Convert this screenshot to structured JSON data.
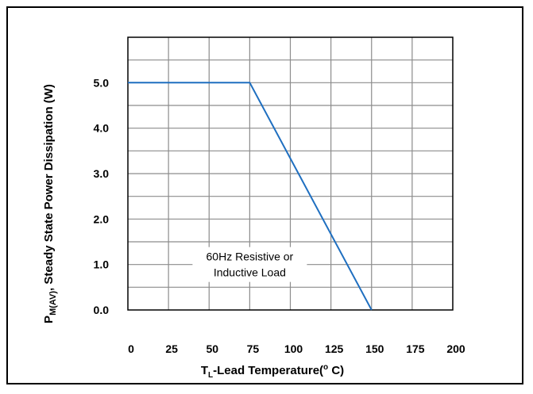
{
  "chart_data": {
    "type": "line",
    "ylabel": {
      "prefix": "P",
      "subscript": "M(AV)",
      "suffix": ", Steady State Power Dissipation (W)"
    },
    "xlabel": {
      "prefix": "T",
      "subscript": "L",
      "middle": "-Lead Temperature(",
      "superscript": "o",
      "suffix": " C)"
    },
    "xlim": [
      0,
      200
    ],
    "ylim": [
      0,
      6.0
    ],
    "x_ticks": [
      0,
      25,
      50,
      75,
      100,
      125,
      150,
      175,
      200
    ],
    "x_tick_labels": [
      "0",
      "25",
      "50",
      "75",
      "100",
      "125",
      "150",
      "175",
      "200"
    ],
    "y_ticks": [
      0,
      1,
      2,
      3,
      4,
      5
    ],
    "y_tick_labels": [
      "0.0",
      "1.0",
      "2.0",
      "3.0",
      "4.0",
      "5.0"
    ],
    "y_grid_step": 0.5,
    "grid": true,
    "series": [
      {
        "color": "#1f6fc0",
        "points": [
          [
            0,
            5.0
          ],
          [
            75,
            5.0
          ],
          [
            150,
            0.0
          ]
        ]
      }
    ],
    "annotation": {
      "lines": [
        "60Hz Resistive or",
        "Inductive Load"
      ],
      "x": 75,
      "y": 1.0
    }
  }
}
